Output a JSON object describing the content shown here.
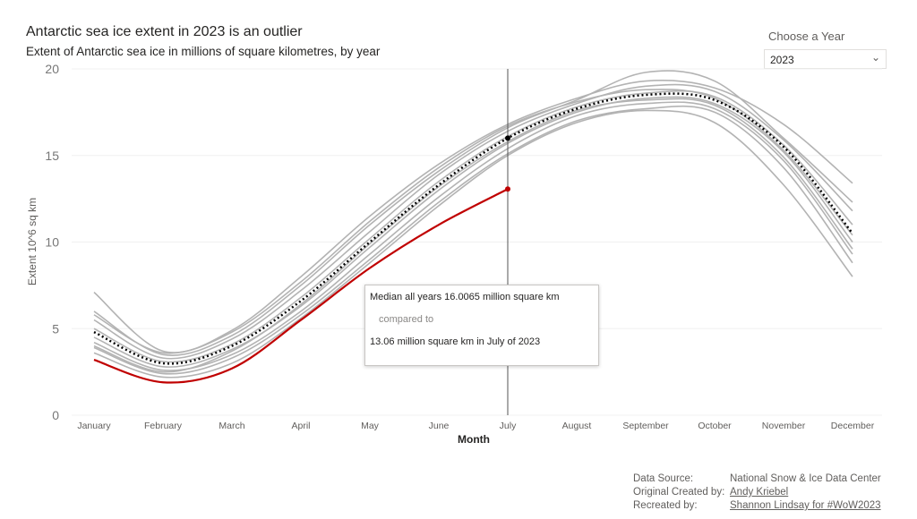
{
  "header": {
    "title": "Antarctic sea ice extent in 2023 is an outlier",
    "subtitle": "Extent of Antarctic sea ice in millions of square kilometres, by year"
  },
  "year_filter": {
    "label": "Choose a Year",
    "selected": "2023"
  },
  "tooltip": {
    "line1": "Median all years 16.0065 million square km",
    "line2": "compared to",
    "line3": "13.06 million square km in July of 2023"
  },
  "credits": [
    {
      "key": "Data Source:",
      "value": "National Snow & Ice Data Center",
      "link": false
    },
    {
      "key": "Original Created by:",
      "value": "Andy Kriebel",
      "link": true
    },
    {
      "key": "Recreated by:",
      "value": "Shannon Lindsay for #WoW2023",
      "link": true
    }
  ],
  "chart_data": {
    "type": "line",
    "xlabel": "Month",
    "ylabel": "Extent 10^6 sq km",
    "categories": [
      "January",
      "February",
      "March",
      "April",
      "May",
      "June",
      "July",
      "August",
      "September",
      "October",
      "November",
      "December"
    ],
    "ylim": [
      0,
      20
    ],
    "yticks": [
      0,
      5,
      10,
      15,
      20
    ],
    "grid": true,
    "highlight_month": "July",
    "colors": {
      "median": "#000000",
      "selected": "#c00000",
      "other": "#b3b3b3"
    },
    "median": {
      "name": "Median all years",
      "values": [
        4.8,
        3.0,
        4.0,
        6.6,
        10.0,
        13.3,
        16.0,
        17.7,
        18.5,
        18.2,
        15.5,
        10.5
      ]
    },
    "selected": {
      "name": "2023",
      "values": [
        3.2,
        1.9,
        2.7,
        5.5,
        8.5,
        11.0,
        13.06
      ]
    },
    "other_years": [
      [
        7.1,
        3.7,
        4.9,
        8.0,
        11.5,
        14.5,
        16.8,
        18.3,
        19.3,
        18.9,
        16.8,
        13.4
      ],
      [
        6.0,
        3.5,
        4.6,
        7.5,
        11.0,
        14.1,
        16.6,
        18.2,
        19.8,
        19.3,
        16.0,
        12.3
      ],
      [
        5.5,
        3.3,
        4.4,
        7.2,
        10.6,
        13.9,
        16.4,
        18.0,
        19.0,
        18.7,
        15.9,
        11.8
      ],
      [
        5.0,
        3.1,
        4.1,
        6.8,
        10.2,
        13.5,
        16.1,
        17.8,
        18.6,
        18.4,
        15.6,
        11.0
      ],
      [
        4.5,
        2.8,
        3.8,
        6.3,
        9.7,
        13.0,
        15.7,
        17.5,
        18.3,
        18.0,
        15.2,
        10.0
      ],
      [
        4.2,
        2.6,
        3.5,
        6.0,
        9.3,
        12.6,
        15.4,
        17.3,
        18.0,
        17.7,
        14.7,
        9.3
      ],
      [
        3.9,
        2.4,
        3.3,
        5.8,
        9.0,
        12.3,
        15.1,
        17.0,
        17.7,
        17.5,
        14.3,
        8.8
      ],
      [
        3.6,
        2.2,
        3.0,
        5.6,
        8.8,
        12.1,
        15.0,
        16.9,
        17.6,
        16.9,
        13.3,
        8.0
      ],
      [
        5.8,
        3.6,
        4.8,
        7.7,
        11.2,
        14.3,
        16.7,
        18.1,
        18.8,
        18.3,
        15.3,
        10.4
      ],
      [
        4.0,
        2.5,
        3.7,
        6.4,
        9.9,
        13.2,
        15.8,
        17.6,
        18.2,
        17.9,
        14.9,
        9.6
      ]
    ]
  }
}
